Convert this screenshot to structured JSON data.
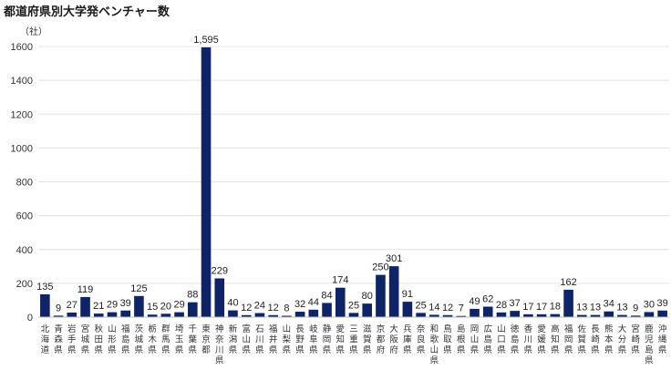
{
  "chart_data": {
    "type": "bar",
    "title": "都道府県別大学発ベンチャー数",
    "unit_label": "（社）",
    "ylim": [
      0,
      1600
    ],
    "yticks": [
      0,
      200,
      400,
      600,
      800,
      1000,
      1200,
      1400,
      1600
    ],
    "grid": true,
    "bar_color": "#0e2466",
    "categories": [
      "北海道",
      "青森県",
      "岩手県",
      "宮城県",
      "秋田県",
      "山形県",
      "福島県",
      "茨城県",
      "栃木県",
      "群馬県",
      "埼玉県",
      "千葉県",
      "東京都",
      "神奈川県",
      "新潟県",
      "富山県",
      "石川県",
      "福井県",
      "山梨県",
      "長野県",
      "岐阜県",
      "静岡県",
      "愛知県",
      "三重県",
      "滋賀県",
      "京都府",
      "大阪府",
      "兵庫県",
      "奈良県",
      "和歌山県",
      "鳥取県",
      "島根県",
      "岡山県",
      "広島県",
      "山口県",
      "徳島県",
      "香川県",
      "愛媛県",
      "高知県",
      "福岡県",
      "佐賀県",
      "長崎県",
      "熊本県",
      "大分県",
      "宮崎県",
      "鹿児島県",
      "沖縄県"
    ],
    "values": [
      135,
      9,
      27,
      119,
      21,
      29,
      39,
      125,
      15,
      20,
      29,
      88,
      1595,
      229,
      40,
      12,
      24,
      12,
      8,
      32,
      44,
      84,
      174,
      25,
      80,
      250,
      301,
      91,
      25,
      14,
      12,
      7,
      49,
      62,
      28,
      37,
      17,
      17,
      18,
      162,
      13,
      13,
      34,
      13,
      9,
      30,
      39
    ],
    "value_labels": [
      "135",
      "9",
      "27",
      "119",
      "21",
      "29",
      "39",
      "125",
      "15",
      "20",
      "29",
      "88",
      "1,595",
      "229",
      "40",
      "12",
      "24",
      "12",
      "8",
      "32",
      "44",
      "84",
      "174",
      "25",
      "80",
      "250",
      "301",
      "91",
      "25",
      "14",
      "12",
      "7",
      "49",
      "62",
      "28",
      "37",
      "17",
      "17",
      "18",
      "162",
      "13",
      "13",
      "34",
      "13",
      "9",
      "30",
      "39"
    ]
  }
}
